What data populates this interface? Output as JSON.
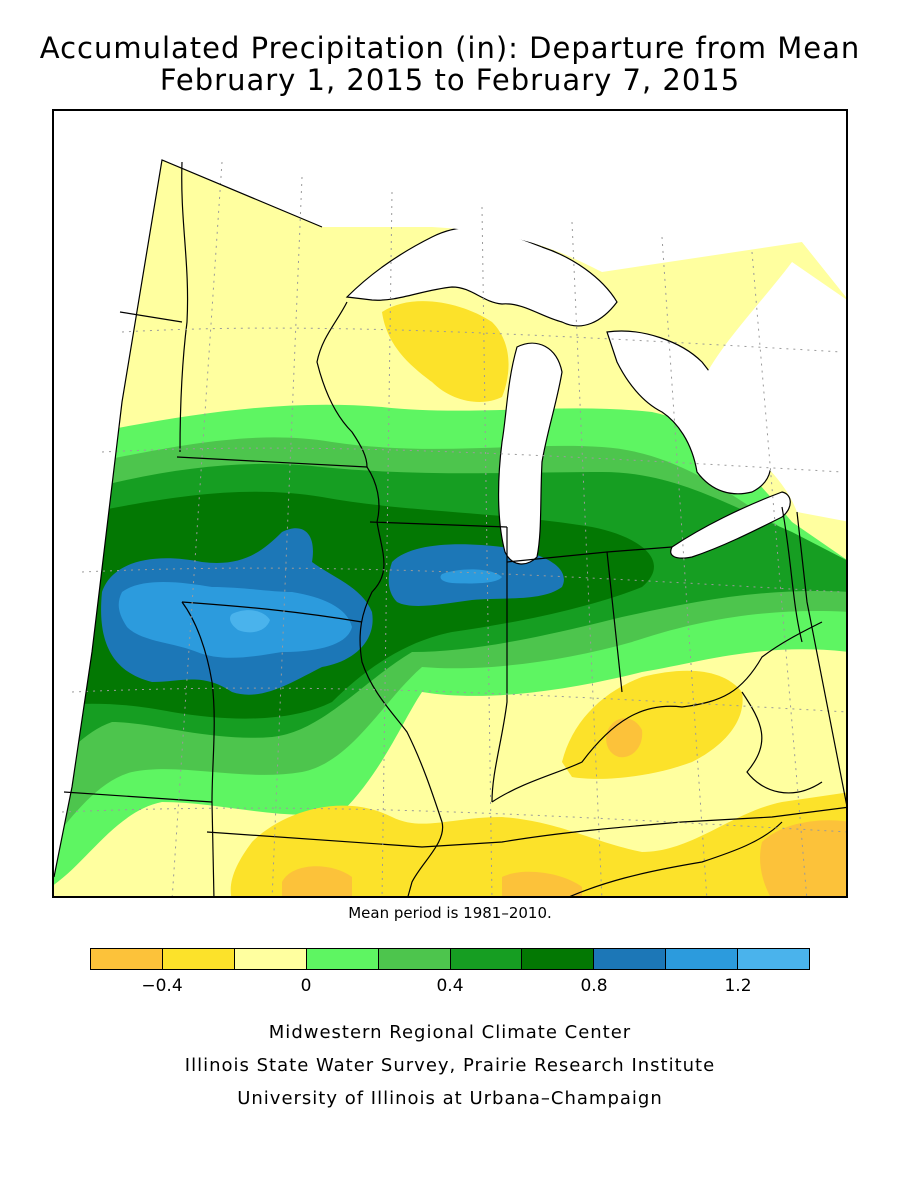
{
  "title_line1": "Accumulated Precipitation (in): Departure from Mean",
  "title_line2": "February 1, 2015 to February 7, 2015",
  "mean_note": "Mean period is 1981–2010.",
  "legend": {
    "colors": [
      "#FCC23A",
      "#FCE22A",
      "#FFFF9F",
      "#5EF562",
      "#4DC54D",
      "#169E22",
      "#037803",
      "#1C77B7",
      "#2C9BDD",
      "#4AB3EC"
    ],
    "boundaries": [
      -0.6,
      -0.4,
      -0.2,
      0,
      0.2,
      0.4,
      0.6,
      0.8,
      1.0,
      1.2,
      1.4
    ],
    "tick_labels": [
      {
        "value": -0.4,
        "label": "−0.4"
      },
      {
        "value": 0,
        "label": "0"
      },
      {
        "value": 0.4,
        "label": "0.4"
      },
      {
        "value": 0.8,
        "label": "0.8"
      },
      {
        "value": 1.2,
        "label": "1.2"
      }
    ]
  },
  "credits": {
    "line1": "Midwestern Regional Climate Center",
    "line2": "Illinois State Water Survey, Prairie Research Institute",
    "line3": "University of Illinois at Urbana–Champaign"
  }
}
